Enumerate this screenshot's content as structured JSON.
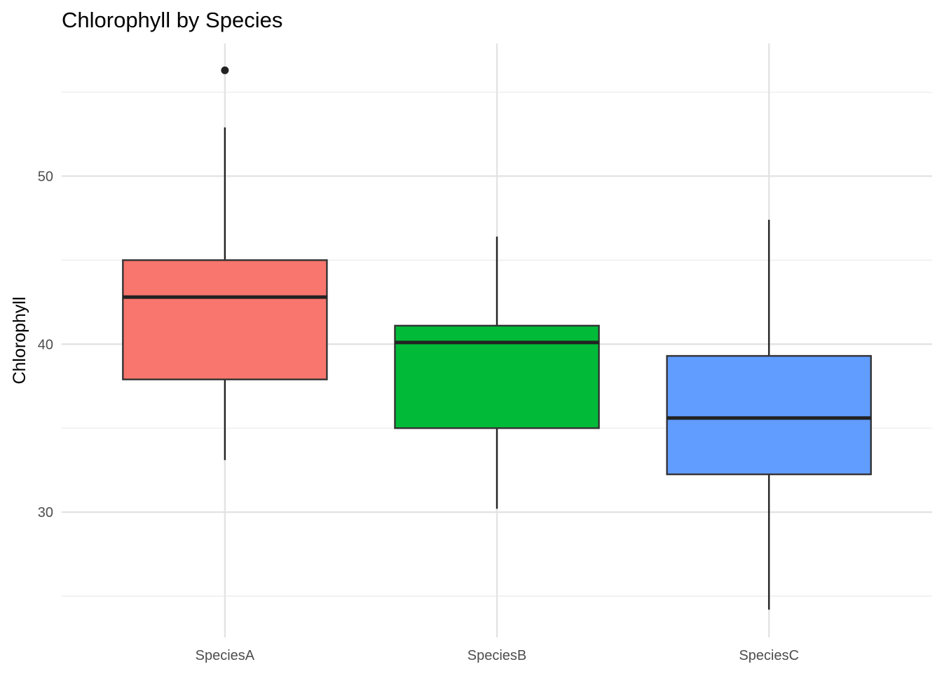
{
  "chart_data": {
    "type": "boxplot",
    "title": "Chlorophyll by Species",
    "xlabel": "",
    "ylabel": "Chlorophyll",
    "categories": [
      "SpeciesA",
      "SpeciesB",
      "SpeciesC"
    ],
    "ylim": [
      22.54,
      57.9
    ],
    "yticks": [
      30,
      40,
      50
    ],
    "ytick_labels": [
      "30",
      "40",
      "50"
    ],
    "minor_yticks": [
      25,
      35,
      45,
      55
    ],
    "grid": true,
    "legend": "none",
    "series": [
      {
        "name": "SpeciesA",
        "color": "#F8766D",
        "lower_whisker": 33.1,
        "q1": 37.9,
        "median": 42.8,
        "q3": 45.0,
        "upper_whisker": 52.9,
        "outliers": [
          56.3
        ]
      },
      {
        "name": "SpeciesB",
        "color": "#00BA38",
        "lower_whisker": 30.2,
        "q1": 35.0,
        "median": 40.1,
        "q3": 41.1,
        "upper_whisker": 46.4,
        "outliers": []
      },
      {
        "name": "SpeciesC",
        "color": "#619CFF",
        "lower_whisker": 24.2,
        "q1": 32.25,
        "median": 35.6,
        "q3": 39.3,
        "upper_whisker": 47.4,
        "outliers": []
      }
    ]
  }
}
